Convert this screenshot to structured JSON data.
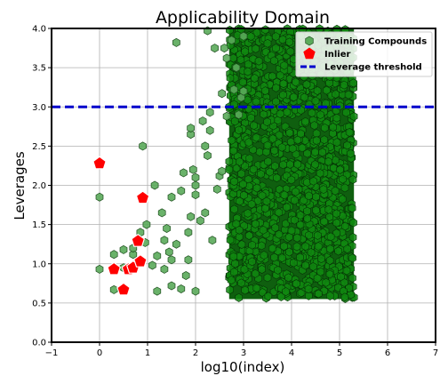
{
  "chart_data": {
    "type": "scatter",
    "title": "Applicability Domain",
    "xlabel": "log10(index)",
    "ylabel": "Leverages",
    "xlim": [
      -1,
      7
    ],
    "ylim": [
      0,
      4
    ],
    "xticks": [
      "−1",
      "0",
      "1",
      "2",
      "3",
      "4",
      "5",
      "6",
      "7"
    ],
    "yticks": [
      "0.0",
      "0.5",
      "1.0",
      "1.5",
      "2.0",
      "2.5",
      "3.0",
      "3.5",
      "4.0"
    ],
    "grid": true,
    "legend_position": "top-right",
    "threshold": {
      "name": "Leverage threshold",
      "y": 3.0,
      "color": "#0000cc"
    },
    "series": [
      {
        "name": "Training Compounds",
        "marker": "hexagon",
        "color": "#118811",
        "density_band": {
          "x_from": 2.7,
          "x_to": 5.3,
          "y_from": 0.55,
          "y_to": 4.0
        },
        "points": [
          [
            0.0,
            0.93
          ],
          [
            0.0,
            1.85
          ],
          [
            0.3,
            0.67
          ],
          [
            0.3,
            1.12
          ],
          [
            0.5,
            0.95
          ],
          [
            0.5,
            1.18
          ],
          [
            0.7,
            1.12
          ],
          [
            0.7,
            1.2
          ],
          [
            0.85,
            1.4
          ],
          [
            0.9,
            2.5
          ],
          [
            0.95,
            1.27
          ],
          [
            0.98,
            1.5
          ],
          [
            1.1,
            0.98
          ],
          [
            1.15,
            2.0
          ],
          [
            1.2,
            0.65
          ],
          [
            1.2,
            1.1
          ],
          [
            1.3,
            1.65
          ],
          [
            1.35,
            0.93
          ],
          [
            1.35,
            1.3
          ],
          [
            1.4,
            1.45
          ],
          [
            1.45,
            1.15
          ],
          [
            1.5,
            0.72
          ],
          [
            1.5,
            1.05
          ],
          [
            1.5,
            1.85
          ],
          [
            1.6,
            1.25
          ],
          [
            1.6,
            3.82
          ],
          [
            1.7,
            0.68
          ],
          [
            1.7,
            1.93
          ],
          [
            1.75,
            2.16
          ],
          [
            1.8,
            0.85
          ],
          [
            1.85,
            1.05
          ],
          [
            1.85,
            1.4
          ],
          [
            1.9,
            1.6
          ],
          [
            1.9,
            2.65
          ],
          [
            1.9,
            2.73
          ],
          [
            1.95,
            2.2
          ],
          [
            2.0,
            1.88
          ],
          [
            2.0,
            2.0
          ],
          [
            2.0,
            2.1
          ],
          [
            2.0,
            0.65
          ],
          [
            2.1,
            1.55
          ],
          [
            2.15,
            2.82
          ],
          [
            2.2,
            1.65
          ],
          [
            2.2,
            2.5
          ],
          [
            2.25,
            2.38
          ],
          [
            2.25,
            3.97
          ],
          [
            2.3,
            2.7
          ],
          [
            2.3,
            2.93
          ],
          [
            2.35,
            1.3
          ],
          [
            2.4,
            3.75
          ],
          [
            2.45,
            1.95
          ],
          [
            2.5,
            2.12
          ],
          [
            2.55,
            2.18
          ],
          [
            2.55,
            3.17
          ],
          [
            2.6,
            3.75
          ],
          [
            2.65,
            3.62
          ],
          [
            2.65,
            2.88
          ],
          [
            2.75,
            3.85
          ],
          [
            2.8,
            3.22
          ],
          [
            2.85,
            3.5
          ],
          [
            2.9,
            2.9
          ],
          [
            2.95,
            3.12
          ],
          [
            3.0,
            3.2
          ],
          [
            3.0,
            3.9
          ]
        ]
      },
      {
        "name": "Inlier",
        "marker": "pentagon",
        "color": "#ff0000",
        "points": [
          [
            0.0,
            2.28
          ],
          [
            0.3,
            0.93
          ],
          [
            0.5,
            0.67
          ],
          [
            0.6,
            0.93
          ],
          [
            0.7,
            0.95
          ],
          [
            0.8,
            1.29
          ],
          [
            0.85,
            1.03
          ],
          [
            0.9,
            1.84
          ]
        ]
      }
    ]
  }
}
